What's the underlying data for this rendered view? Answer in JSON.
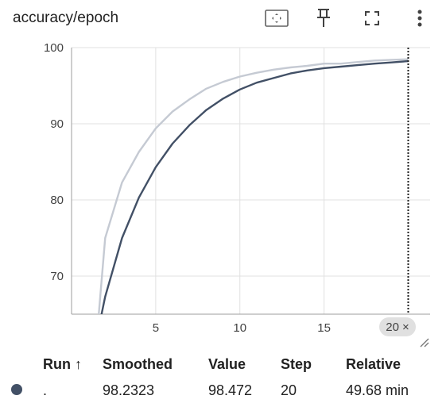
{
  "card": {
    "title": "accuracy/epoch",
    "toolbar": [
      {
        "name": "fit-domain-icon",
        "label": "Fit domain to data"
      },
      {
        "name": "pin-icon",
        "label": "Pin card"
      },
      {
        "name": "fullscreen-icon",
        "label": "Toggle full size"
      },
      {
        "name": "more-vert-icon",
        "label": "More actions"
      }
    ]
  },
  "chart_data": {
    "type": "line",
    "title": "accuracy/epoch",
    "xlabel": "",
    "ylabel": "",
    "xlim": [
      0,
      21.3
    ],
    "ylim": [
      65,
      100
    ],
    "x_ticks": [
      5,
      10,
      15
    ],
    "y_ticks": [
      70,
      80,
      90,
      100
    ],
    "y_tick_labels": [
      "70",
      "80",
      "90",
      "100"
    ],
    "grid": true,
    "colors": {
      "raw": "#c5cad3",
      "smoothed": "#425066",
      "step_marker": "#212121"
    },
    "series": [
      {
        "role": "raw",
        "x": [
          1.5,
          2,
          3,
          4,
          5,
          6,
          7,
          8,
          9,
          10,
          11,
          12,
          13,
          14,
          15,
          16,
          17,
          18,
          19,
          20
        ],
        "y": [
          62.0,
          75.0,
          82.3,
          86.3,
          89.4,
          91.6,
          93.2,
          94.6,
          95.5,
          96.2,
          96.7,
          97.1,
          97.4,
          97.6,
          97.9,
          97.9,
          98.1,
          98.3,
          98.4,
          98.472
        ]
      },
      {
        "role": "smoothed",
        "x": [
          1.5,
          2,
          3,
          4,
          5,
          6,
          7,
          8,
          9,
          10,
          11,
          12,
          13,
          14,
          15,
          16,
          17,
          18,
          19,
          20
        ],
        "y": [
          62.0,
          67.3,
          75.0,
          80.3,
          84.3,
          87.4,
          89.8,
          91.8,
          93.3,
          94.5,
          95.4,
          96.0,
          96.6,
          97.0,
          97.3,
          97.5,
          97.7,
          97.9,
          98.05,
          98.2323
        ]
      }
    ],
    "selected_step": 20
  },
  "step_chip": {
    "label": "20",
    "close": "×"
  },
  "table": {
    "headers": {
      "run": "Run ↑",
      "smoothed": "Smoothed",
      "value": "Value",
      "step": "Step",
      "relative": "Relative"
    },
    "rows": [
      {
        "color": "#425066",
        "run": ".",
        "smoothed": "98.2323",
        "value": "98.472",
        "step": "20",
        "relative": "49.68 min"
      }
    ]
  }
}
